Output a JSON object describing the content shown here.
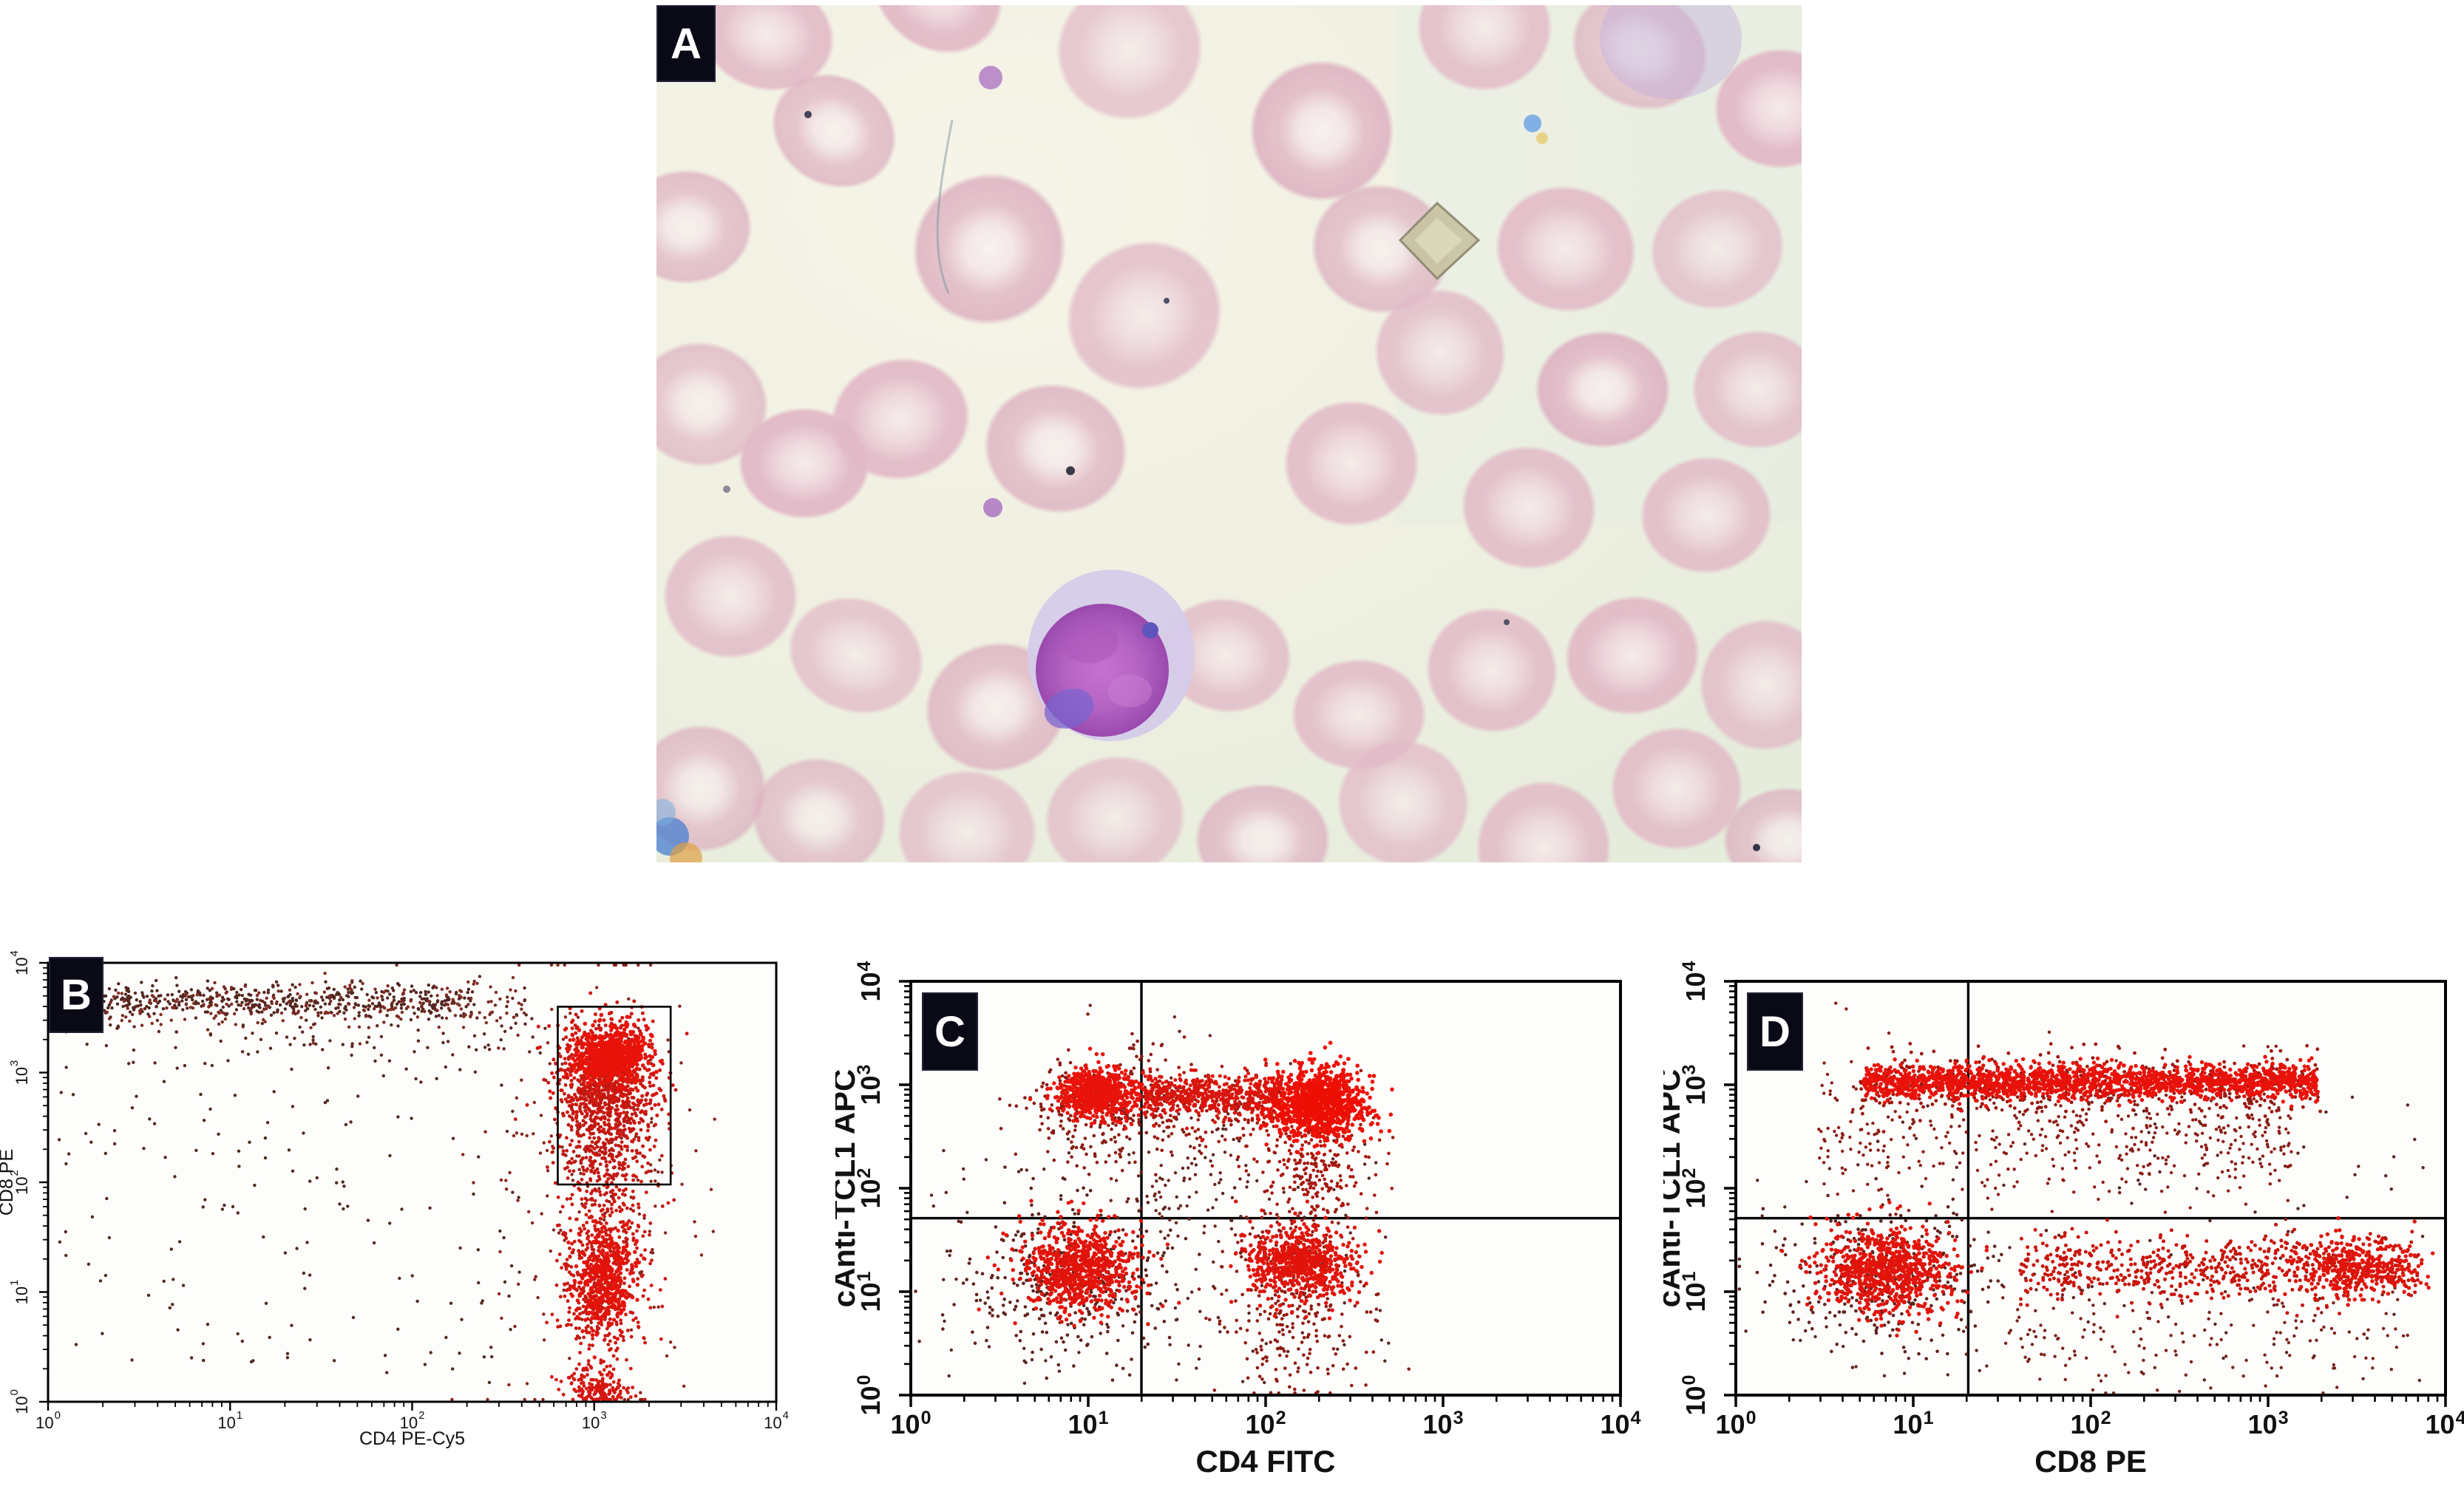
{
  "figure": {
    "panels": [
      {
        "id": "A",
        "label": "A",
        "type": "micrograph"
      },
      {
        "id": "B",
        "label": "B",
        "type": "scatter"
      },
      {
        "id": "C",
        "label": "C",
        "type": "scatter"
      },
      {
        "id": "D",
        "label": "D",
        "type": "scatter"
      }
    ],
    "label_box_color": "#0a0a16",
    "label_text_color": "#ffffff"
  },
  "micrograph": {
    "panel_label": "A",
    "colors": {
      "background": "#eff0e1",
      "background_edge": "#e5ecdc",
      "rbc_body": "#e2bac7",
      "rbc_pale": "#efd9df",
      "rbc_center": "#f6ecea",
      "lymphocyte_cytoplasm": "#d5cbe9",
      "lymphocyte_nucleus": "#b564c4",
      "lymphocyte_nucleus_edge": "#9a49ae",
      "nucleus_patch": "#7b64cd",
      "artifact_tan": "#c9c4a4",
      "artifact_blue": "#6fa5e6",
      "artifact_orange": "#e0a040"
    }
  },
  "chart_data": [
    {
      "id": "B",
      "type": "scatter",
      "panel_label": "B",
      "xlabel": "CD4 PE-Cy5",
      "ylabel": "CD8 PE",
      "xscale": "log",
      "yscale": "log",
      "xlim": [
        1,
        10000
      ],
      "ylim": [
        1,
        10000
      ],
      "x_tick_exponents": [
        0,
        1,
        2,
        3,
        4
      ],
      "y_tick_exponents": [
        0,
        1,
        2,
        3,
        4
      ],
      "grid": false,
      "legend": null,
      "gate_rectangle": {
        "x_decades": [
          2.8,
          3.42
        ],
        "y_decades": [
          1.98,
          3.6
        ]
      },
      "quadrant_lines": null,
      "clusters": [
        {
          "kind": "field",
          "x0": 0.05,
          "x1": 2.6,
          "y0": 0.15,
          "y1": 3.3,
          "n": 170,
          "color": "#54281f",
          "r": 2.2
        },
        {
          "kind": "gauss",
          "cx": 3.0,
          "cy": 2.0,
          "sx": 0.3,
          "sy": 1.0,
          "n": 220,
          "color": "#8a241b",
          "r": 2.2
        },
        {
          "kind": "bandx",
          "x0": 0.03,
          "x1": 2.35,
          "cy": 3.66,
          "sy": 0.08,
          "n": 430,
          "color": "#53261f",
          "r": 2.2
        },
        {
          "kind": "bandx",
          "x0": 0.08,
          "x1": 2.62,
          "cy": 3.62,
          "sy": 0.12,
          "n": 270,
          "color": "#7e2c22",
          "r": 2.2
        },
        {
          "kind": "bandx",
          "x0": 0.3,
          "x1": 2.75,
          "cy": 3.44,
          "sy": 0.22,
          "n": 120,
          "color": "#5d2721",
          "r": 2.2
        },
        {
          "kind": "gauss",
          "cx": 3.07,
          "cy": 3.0,
          "sx": 0.14,
          "sy": 0.25,
          "n": 820,
          "color": "#cf1710",
          "r": 2.5
        },
        {
          "kind": "gauss",
          "cx": 3.05,
          "cy": 2.42,
          "sx": 0.13,
          "sy": 0.3,
          "n": 420,
          "color": "#c01811",
          "r": 2.4
        },
        {
          "kind": "gauss",
          "cx": 3.1,
          "cy": 3.15,
          "sx": 0.09,
          "sy": 0.12,
          "n": 540,
          "color": "#ea1309",
          "r": 2.8
        },
        {
          "kind": "gauss",
          "cx": 3.04,
          "cy": 1.2,
          "sx": 0.12,
          "sy": 0.42,
          "n": 620,
          "color": "#cc1810",
          "r": 2.4
        },
        {
          "kind": "gauss",
          "cx": 3.07,
          "cy": 1.1,
          "sx": 0.08,
          "sy": 0.22,
          "n": 320,
          "color": "#e4130a",
          "r": 2.7
        },
        {
          "kind": "gauss",
          "cx": 3.03,
          "cy": 0.12,
          "sx": 0.1,
          "sy": 0.08,
          "n": 160,
          "color": "#d41710",
          "r": 2.4
        }
      ]
    },
    {
      "id": "C",
      "type": "scatter",
      "panel_label": "C",
      "xlabel": "CD4 FITC",
      "ylabel": "cAnti-TCL1 APC",
      "xscale": "log",
      "yscale": "log",
      "xlim": [
        1,
        10000
      ],
      "ylim": [
        1,
        10000
      ],
      "x_tick_exponents": [
        0,
        1,
        2,
        3,
        4
      ],
      "y_tick_exponents": [
        0,
        1,
        2,
        3,
        4
      ],
      "grid": false,
      "legend": null,
      "gate_rectangle": null,
      "quadrant_lines": {
        "x_decade": 1.3,
        "y_decade": 1.71
      },
      "clusters": [
        {
          "kind": "field",
          "x0": 0.1,
          "x1": 2.7,
          "y0": 0.1,
          "y1": 2.6,
          "n": 150,
          "color": "#5c2420",
          "r": 2.2
        },
        {
          "kind": "gauss",
          "cx": 1.5,
          "cy": 2.2,
          "sx": 0.22,
          "sy": 0.5,
          "n": 110,
          "color": "#6e231d",
          "r": 2.2
        },
        {
          "kind": "gauss",
          "cx": 1.05,
          "cy": 2.8,
          "sx": 0.2,
          "sy": 0.28,
          "n": 270,
          "color": "#8c1b13",
          "r": 2.3
        },
        {
          "kind": "gauss",
          "cx": 1.06,
          "cy": 2.92,
          "sx": 0.11,
          "sy": 0.12,
          "n": 720,
          "color": "#e8130a",
          "r": 2.7
        },
        {
          "kind": "bandx",
          "x0": 1.32,
          "x1": 2.05,
          "cy": 2.74,
          "sy": 0.22,
          "n": 170,
          "color": "#a0180f",
          "r": 2.3
        },
        {
          "kind": "bandx",
          "x0": 1.32,
          "x1": 2.1,
          "cy": 2.9,
          "sy": 0.1,
          "n": 540,
          "color": "#d8150c",
          "r": 2.5
        },
        {
          "kind": "gauss",
          "cx": 2.28,
          "cy": 2.25,
          "sx": 0.15,
          "sy": 0.35,
          "n": 300,
          "color": "#a8170e",
          "r": 2.3
        },
        {
          "kind": "gauss",
          "cx": 2.3,
          "cy": 2.82,
          "sx": 0.13,
          "sy": 0.16,
          "n": 1050,
          "color": "#ee0f04",
          "r": 2.8
        },
        {
          "kind": "gauss",
          "cx": 0.9,
          "cy": 1.1,
          "sx": 0.3,
          "sy": 0.38,
          "n": 340,
          "color": "#61221c",
          "r": 2.3
        },
        {
          "kind": "gauss",
          "cx": 0.95,
          "cy": 1.22,
          "sx": 0.16,
          "sy": 0.2,
          "n": 780,
          "color": "#e1140b",
          "r": 2.7
        },
        {
          "kind": "gauss",
          "cx": 2.15,
          "cy": 0.9,
          "sx": 0.2,
          "sy": 0.42,
          "n": 300,
          "color": "#8f1c13",
          "r": 2.3
        },
        {
          "kind": "gauss",
          "cx": 2.2,
          "cy": 1.28,
          "sx": 0.15,
          "sy": 0.17,
          "n": 650,
          "color": "#e1140b",
          "r": 2.7
        }
      ]
    },
    {
      "id": "D",
      "type": "scatter",
      "panel_label": "D",
      "xlabel": "CD8 PE",
      "ylabel": "cAnti-TCL1 APC",
      "xscale": "log",
      "yscale": "log",
      "xlim": [
        1,
        10000
      ],
      "ylim": [
        1,
        10000
      ],
      "x_tick_exponents": [
        0,
        1,
        2,
        3,
        4
      ],
      "y_tick_exponents": [
        0,
        1,
        2,
        3,
        4
      ],
      "grid": false,
      "legend": null,
      "gate_rectangle": null,
      "quadrant_lines": {
        "x_decade": 1.31,
        "y_decade": 1.71
      },
      "clusters": [
        {
          "kind": "field",
          "x0": 0.1,
          "x1": 3.9,
          "y0": 0.1,
          "y1": 2.9,
          "n": 130,
          "color": "#5c2420",
          "r": 2.2
        },
        {
          "kind": "bandx",
          "x0": 0.7,
          "x1": 3.3,
          "cy": 3.0,
          "sy": 0.16,
          "n": 470,
          "color": "#9c150d",
          "r": 2.4
        },
        {
          "kind": "bandx",
          "x0": 1.35,
          "x1": 3.15,
          "cy": 2.5,
          "sy": 0.32,
          "n": 380,
          "color": "#8c1d15",
          "r": 2.2
        },
        {
          "kind": "bandx",
          "x0": 0.45,
          "x1": 1.3,
          "cy": 2.6,
          "sy": 0.35,
          "n": 140,
          "color": "#8c1d15",
          "r": 2.2
        },
        {
          "kind": "bandx",
          "x0": 0.72,
          "x1": 3.28,
          "cy": 3.03,
          "sy": 0.08,
          "n": 1750,
          "color": "#e8120a",
          "r": 2.7
        },
        {
          "kind": "gauss",
          "cx": 0.8,
          "cy": 1.1,
          "sx": 0.32,
          "sy": 0.38,
          "n": 320,
          "color": "#61221c",
          "r": 2.3
        },
        {
          "kind": "gauss",
          "cx": 0.85,
          "cy": 1.2,
          "sx": 0.18,
          "sy": 0.2,
          "n": 820,
          "color": "#e1140b",
          "r": 2.7
        },
        {
          "kind": "bandx",
          "x0": 1.5,
          "x1": 3.8,
          "cy": 0.6,
          "sy": 0.3,
          "n": 180,
          "color": "#7c221b",
          "r": 2.2
        },
        {
          "kind": "bandx",
          "x0": 1.6,
          "x1": 3.85,
          "cy": 1.22,
          "sy": 0.16,
          "n": 680,
          "color": "#c8150c",
          "r": 2.5
        },
        {
          "kind": "gauss",
          "cx": 3.5,
          "cy": 1.25,
          "sx": 0.2,
          "sy": 0.14,
          "n": 320,
          "color": "#e1140b",
          "r": 2.7
        }
      ]
    }
  ]
}
